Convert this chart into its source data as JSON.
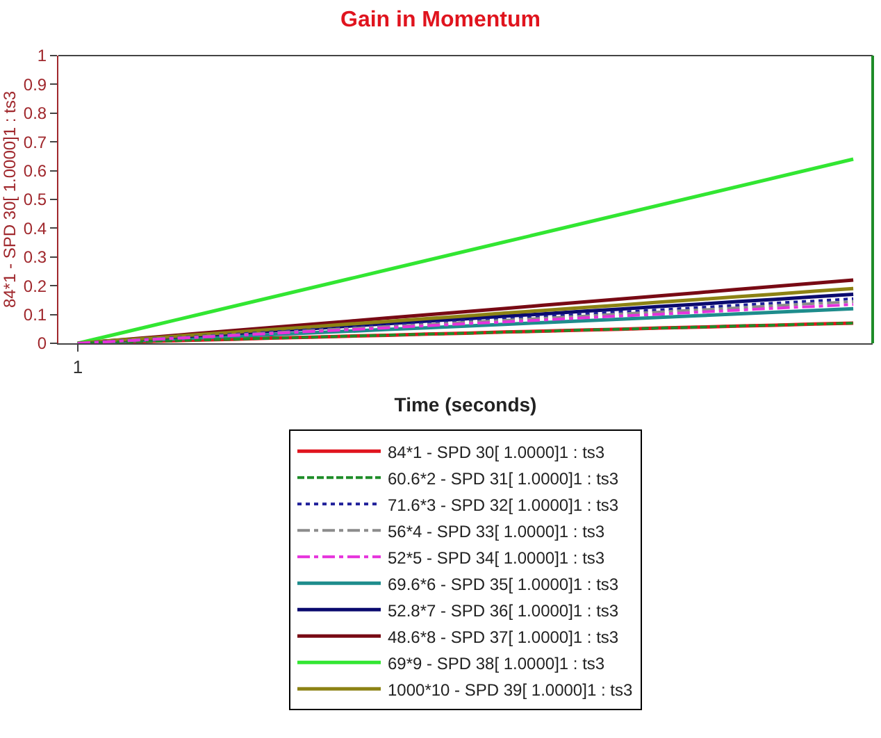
{
  "chart_data": {
    "type": "line",
    "title": "Gain in Momentum",
    "xlabel": "Time (seconds)",
    "ylabel": "84*1 - SPD 30[ 1.0000]1 : ts3",
    "categories": [
      "1",
      null,
      null,
      null,
      null,
      null,
      null,
      null,
      null,
      null,
      null,
      null,
      null,
      null,
      null,
      null,
      null,
      null,
      null,
      null,
      null
    ],
    "ylim": [
      0,
      1
    ],
    "yticks": [
      0,
      0.1,
      0.2,
      0.3,
      0.4,
      0.5,
      0.6,
      0.7,
      0.8,
      0.9,
      1
    ],
    "legend": "bottom",
    "marker": "none",
    "series": [
      {
        "name": "84*1 - SPD 30[ 1.0000]1 : ts3",
        "color": "#e0141e",
        "line_style": "solid",
        "values": [
          0,
          0.004,
          0.007,
          0.011,
          0.014,
          0.018,
          0.021,
          0.025,
          0.028,
          0.032,
          0.035,
          0.039,
          0.042,
          0.046,
          0.049,
          0.053,
          0.056,
          0.06,
          0.063,
          0.067,
          0.07
        ]
      },
      {
        "name": "60.6*2 - SPD 31[ 1.0000]1 : ts3",
        "color": "#1e8c28",
        "line_style": "dashed",
        "values": [
          0,
          0.004,
          0.007,
          0.011,
          0.014,
          0.018,
          0.021,
          0.025,
          0.028,
          0.032,
          0.035,
          0.039,
          0.042,
          0.046,
          0.049,
          0.053,
          0.056,
          0.06,
          0.063,
          0.067,
          0.07
        ]
      },
      {
        "name": "71.6*3 - SPD 32[ 1.0000]1 : ts3",
        "color": "#1e1e9a",
        "line_style": "dotted",
        "values": [
          0,
          0.008,
          0.016,
          0.023,
          0.031,
          0.039,
          0.047,
          0.054,
          0.062,
          0.07,
          0.078,
          0.085,
          0.093,
          0.101,
          0.109,
          0.116,
          0.124,
          0.132,
          0.14,
          0.147,
          0.155
        ]
      },
      {
        "name": "56*4 - SPD 33[ 1.0000]1 : ts3",
        "color": "#8c8c8c",
        "line_style": "dashdot",
        "values": [
          0,
          0.007,
          0.015,
          0.022,
          0.029,
          0.036,
          0.044,
          0.051,
          0.058,
          0.065,
          0.073,
          0.08,
          0.087,
          0.094,
          0.102,
          0.109,
          0.116,
          0.123,
          0.131,
          0.138,
          0.145
        ]
      },
      {
        "name": "52*5 - SPD 34[ 1.0000]1 : ts3",
        "color": "#e632dc",
        "line_style": "dashdot",
        "values": [
          0,
          0.007,
          0.014,
          0.02,
          0.027,
          0.034,
          0.041,
          0.047,
          0.054,
          0.061,
          0.068,
          0.074,
          0.081,
          0.088,
          0.095,
          0.101,
          0.108,
          0.115,
          0.122,
          0.128,
          0.135
        ]
      },
      {
        "name": "69.6*6 - SPD 35[ 1.0000]1 : ts3",
        "color": "#1e8c8c",
        "line_style": "solid",
        "values": [
          0,
          0.006,
          0.012,
          0.018,
          0.024,
          0.03,
          0.036,
          0.042,
          0.048,
          0.054,
          0.06,
          0.066,
          0.072,
          0.078,
          0.084,
          0.09,
          0.096,
          0.102,
          0.108,
          0.114,
          0.12
        ]
      },
      {
        "name": "52.8*7 - SPD 36[ 1.0000]1 : ts3",
        "color": "#0a0a6e",
        "line_style": "solid",
        "values": [
          0,
          0.009,
          0.017,
          0.026,
          0.034,
          0.043,
          0.051,
          0.06,
          0.068,
          0.077,
          0.085,
          0.094,
          0.102,
          0.111,
          0.119,
          0.128,
          0.136,
          0.145,
          0.153,
          0.162,
          0.17
        ]
      },
      {
        "name": "48.6*8 - SPD 37[ 1.0000]1 : ts3",
        "color": "#780a14",
        "line_style": "solid",
        "values": [
          0,
          0.011,
          0.022,
          0.033,
          0.044,
          0.055,
          0.066,
          0.077,
          0.088,
          0.099,
          0.11,
          0.121,
          0.132,
          0.143,
          0.154,
          0.165,
          0.176,
          0.187,
          0.198,
          0.209,
          0.22
        ]
      },
      {
        "name": "69*9 - SPD 38[ 1.0000]1 : ts3",
        "color": "#32e632",
        "line_style": "solid",
        "values": [
          0,
          0.032,
          0.064,
          0.096,
          0.128,
          0.16,
          0.192,
          0.224,
          0.256,
          0.288,
          0.32,
          0.352,
          0.384,
          0.416,
          0.448,
          0.48,
          0.512,
          0.544,
          0.576,
          0.608,
          0.64
        ]
      },
      {
        "name": "1000*10 - SPD 39[ 1.0000]1 : ts3",
        "color": "#8c8214",
        "line_style": "solid",
        "values": [
          0,
          0.01,
          0.019,
          0.029,
          0.038,
          0.048,
          0.057,
          0.067,
          0.076,
          0.086,
          0.095,
          0.105,
          0.114,
          0.124,
          0.133,
          0.143,
          0.152,
          0.162,
          0.171,
          0.181,
          0.19
        ]
      }
    ]
  }
}
